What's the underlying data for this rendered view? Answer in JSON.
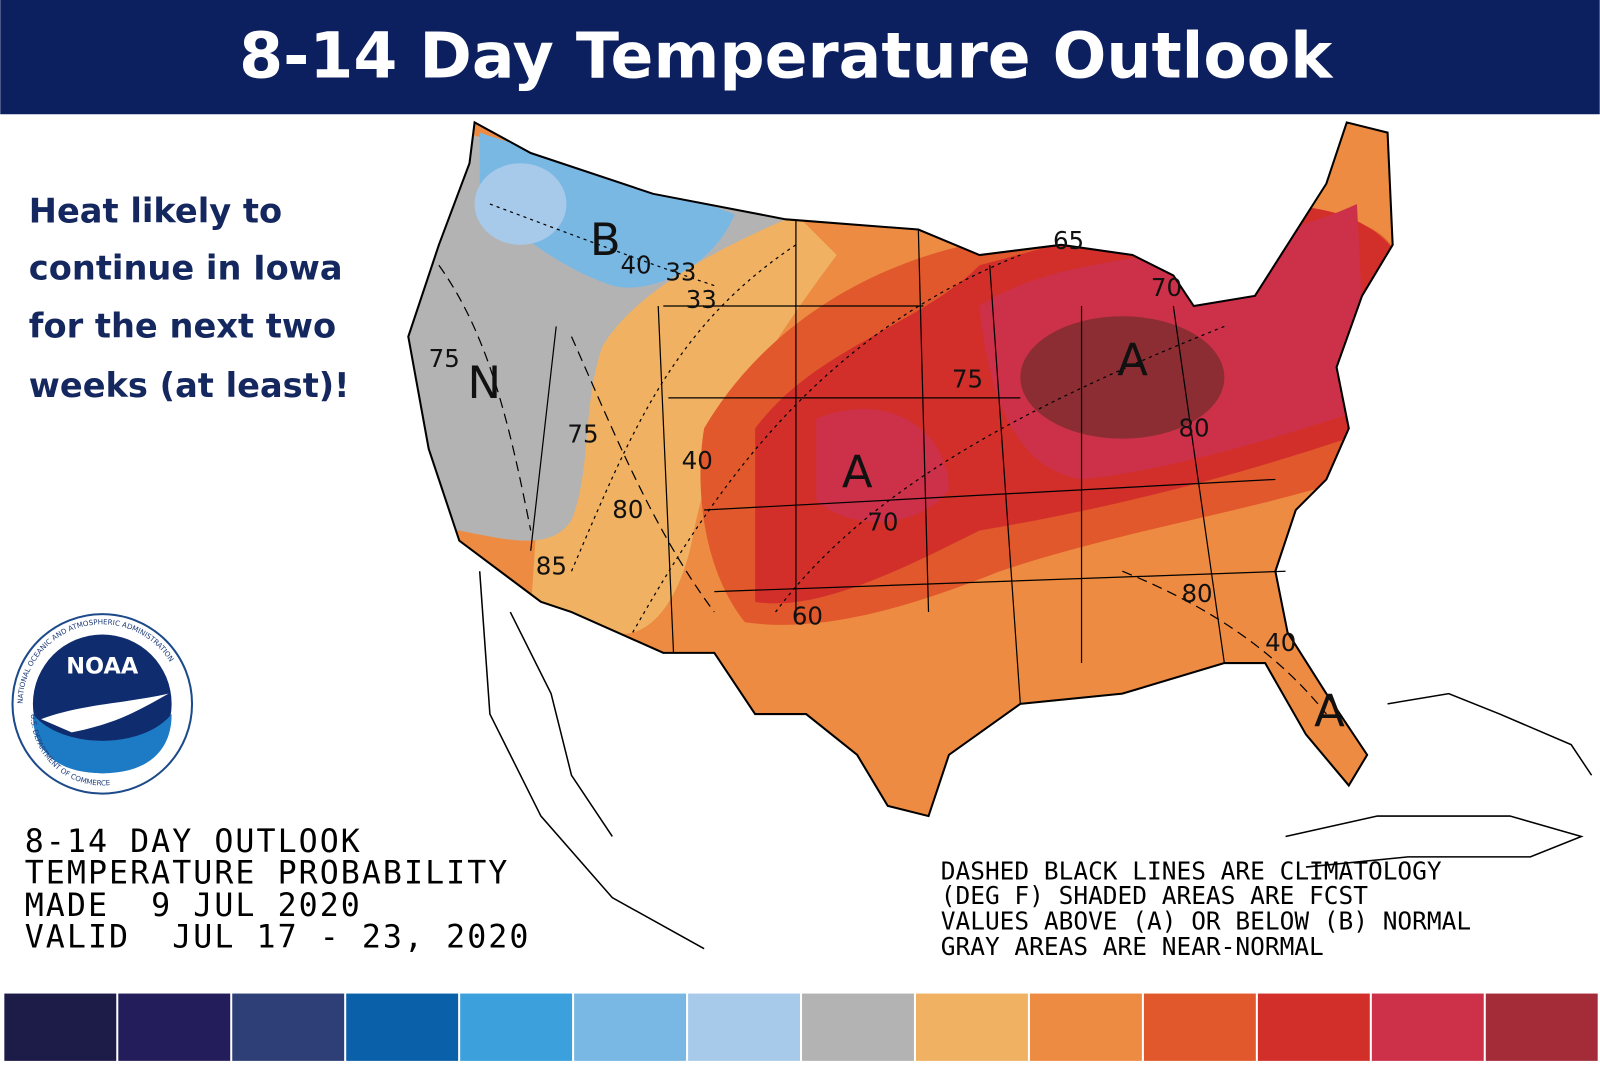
{
  "header": {
    "title": "8-14 Day Temperature Outlook"
  },
  "caption": {
    "lines": [
      "Heat likely to",
      "continue in Iowa",
      "for the next two",
      "weeks (at least)!"
    ]
  },
  "logo": {
    "name": "NOAA",
    "ring_top": "NATIONAL OCEANIC AND ATMOSPHERIC ADMINISTRATION",
    "ring_bottom": "U.S. DEPARTMENT OF COMMERCE"
  },
  "product_info": {
    "lines": [
      "8-14 DAY OUTLOOK",
      "TEMPERATURE PROBABILITY",
      "MADE  9 JUL 2020",
      "VALID  JUL 17 - 23, 2020"
    ]
  },
  "notes": {
    "lines": [
      "DASHED BLACK LINES ARE CLIMATOLOGY",
      "(DEG F) SHADED AREAS ARE FCST",
      "VALUES ABOVE (A) OR BELOW (B) NORMAL",
      "GRAY AREAS ARE NEAR-NORMAL"
    ]
  },
  "map": {
    "labels": [
      "B",
      "40",
      "33",
      "33",
      "75",
      "N",
      "75",
      "40",
      "80",
      "85",
      "A",
      "70",
      "60",
      "75",
      "A",
      "80",
      "65",
      "70",
      "80",
      "40",
      "A"
    ]
  },
  "legend": {
    "colors": [
      "#1d1b48",
      "#241d5c",
      "#2d3f76",
      "#0b60aa",
      "#3ba0dc",
      "#79b8e4",
      "#a7c9ea",
      "#b3b3b3",
      "#f0b262",
      "#ee8b42",
      "#e0582b",
      "#d22f2b",
      "#cd3149",
      "#a42c38"
    ]
  }
}
